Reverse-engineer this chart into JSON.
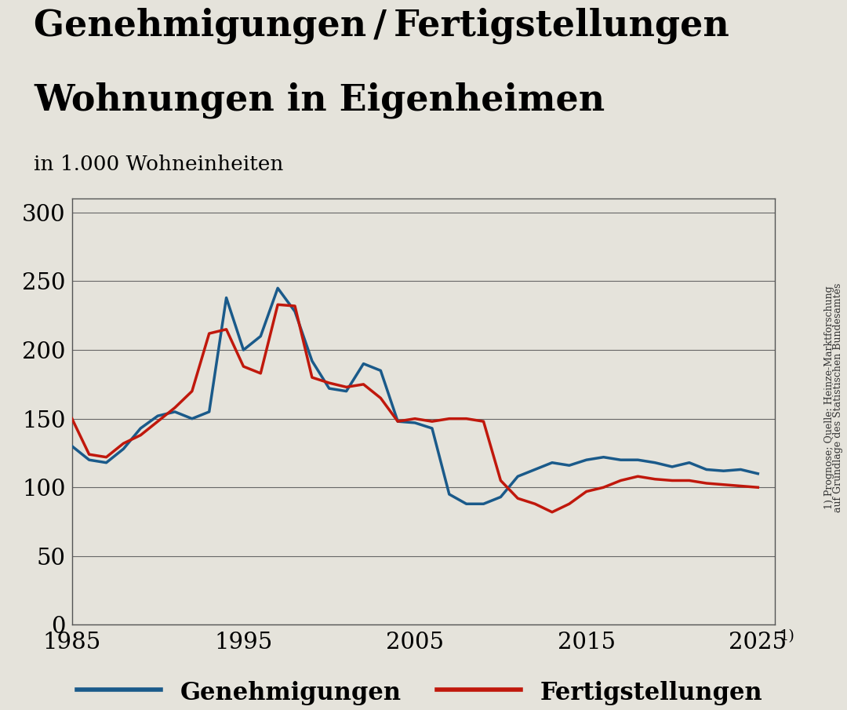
{
  "title_line1": "Genehmigungen / Fertigstellungen",
  "title_line2": "Wohnungen in Eigenheimen",
  "subtitle": "in 1.000 Wohneinheiten",
  "source_line1": "1) Prognose; Quelle: Heinze-Marktforschung",
  "source_line2": "auf Grundlage des Statistischen Bundesamtes",
  "background_color": "#e5e3db",
  "plot_bg_color": "#e5e3db",
  "blue_color": "#1a5a8a",
  "red_color": "#c0180c",
  "legend_blue": "Genehmigungen",
  "legend_red": "Fertigstellungen",
  "xlim": [
    1985,
    2026
  ],
  "ylim": [
    0,
    310
  ],
  "yticks": [
    0,
    50,
    100,
    150,
    200,
    250,
    300
  ],
  "xticks": [
    1985,
    1995,
    2005,
    2015,
    2025
  ],
  "genehmigungen": {
    "years": [
      1985,
      1986,
      1987,
      1988,
      1989,
      1990,
      1991,
      1992,
      1993,
      1994,
      1995,
      1996,
      1997,
      1998,
      1999,
      2000,
      2001,
      2002,
      2003,
      2004,
      2005,
      2006,
      2007,
      2008,
      2009,
      2010,
      2011,
      2012,
      2013,
      2014,
      2015,
      2016,
      2017,
      2018,
      2019,
      2020,
      2021,
      2022,
      2023,
      2024,
      2025
    ],
    "values": [
      130,
      120,
      118,
      128,
      143,
      152,
      155,
      150,
      155,
      238,
      200,
      210,
      245,
      228,
      192,
      172,
      170,
      190,
      185,
      148,
      147,
      143,
      95,
      88,
      88,
      93,
      108,
      113,
      118,
      116,
      120,
      122,
      120,
      120,
      118,
      115,
      118,
      113,
      112,
      113,
      110
    ]
  },
  "fertigstellungen": {
    "years": [
      1985,
      1986,
      1987,
      1988,
      1989,
      1990,
      1991,
      1992,
      1993,
      1994,
      1995,
      1996,
      1997,
      1998,
      1999,
      2000,
      2001,
      2002,
      2003,
      2004,
      2005,
      2006,
      2007,
      2008,
      2009,
      2010,
      2011,
      2012,
      2013,
      2014,
      2015,
      2016,
      2017,
      2018,
      2019,
      2020,
      2021,
      2022,
      2023,
      2024,
      2025
    ],
    "values": [
      150,
      124,
      122,
      132,
      138,
      148,
      158,
      170,
      212,
      215,
      188,
      183,
      233,
      232,
      180,
      176,
      173,
      175,
      165,
      148,
      150,
      148,
      150,
      150,
      148,
      105,
      92,
      88,
      82,
      88,
      97,
      100,
      105,
      108,
      106,
      105,
      105,
      103,
      102,
      101,
      100
    ]
  }
}
